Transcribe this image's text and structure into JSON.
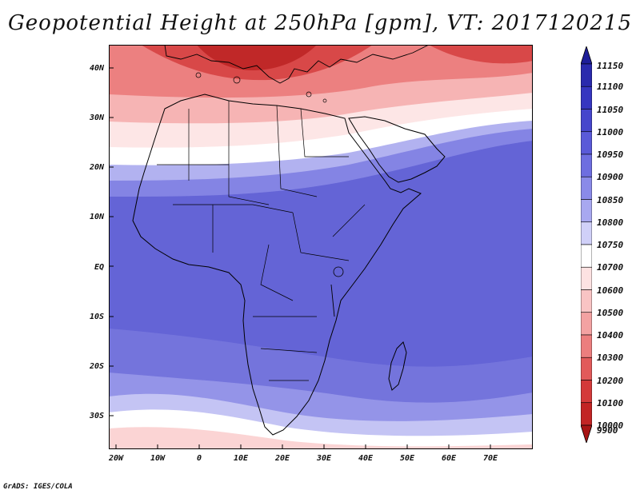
{
  "title": "Geopotential Height at 250hPa [gpm], VT: 2017120215",
  "credit": "GrADS: IGES/COLA",
  "y_ticks": [
    "40N",
    "30N",
    "20N",
    "10N",
    "EQ",
    "10S",
    "20S",
    "30S"
  ],
  "x_ticks": [
    "20W",
    "10W",
    "0",
    "10E",
    "20E",
    "30E",
    "40E",
    "50E",
    "60E",
    "70E"
  ],
  "colorbar": {
    "labels": [
      "11150",
      "11100",
      "11050",
      "11000",
      "10950",
      "10900",
      "10850",
      "10800",
      "10750",
      "10700",
      "10600",
      "10500",
      "10400",
      "10300",
      "10200",
      "10100",
      "10000",
      "9900"
    ],
    "colors_top_to_bottom": [
      "#1e1e99",
      "#2a2aad",
      "#3636c0",
      "#4646cc",
      "#5a5ad8",
      "#6e6ee0",
      "#8a8ae8",
      "#a8a8f0",
      "#d0d0f8",
      "#ffffff",
      "#fde2e2",
      "#f9c4c4",
      "#f3a2a2",
      "#ec7e7e",
      "#e25a5a",
      "#d43a3a",
      "#c22424",
      "#a81414"
    ]
  },
  "colors": {
    "deep_red": "#b81e1e",
    "red": "#e05050",
    "light_red": "#f8c0c0",
    "pale": "#fde6e6",
    "white": "#ffffff",
    "pale_blue": "#d4d4f6",
    "light_blue": "#a4a4ec",
    "mid_blue": "#8484e4",
    "blue": "#6a6ad8",
    "deep_blue": "#5e5ed2",
    "coast": "#000000"
  }
}
